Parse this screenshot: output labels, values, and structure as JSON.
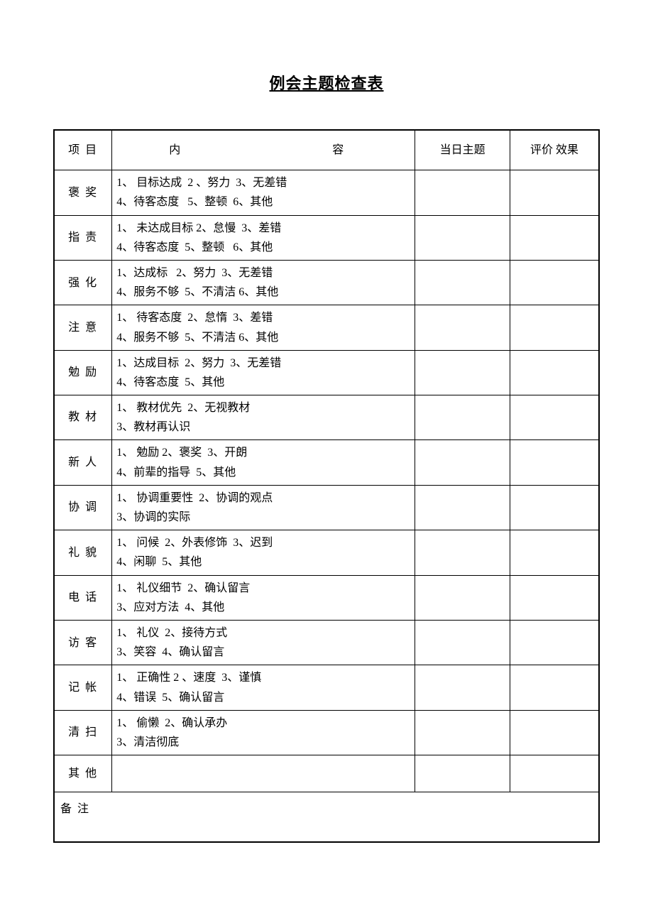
{
  "document": {
    "title": "例会主题检查表",
    "background_color": "#ffffff",
    "border_color": "#000000",
    "text_color": "#000000",
    "title_fontsize": 22,
    "body_fontsize": 16
  },
  "headers": {
    "category": "项 目",
    "content_left": "内",
    "content_right": "容",
    "topic": "当日主题",
    "effect": "评价\n效果"
  },
  "rows": [
    {
      "category": "褒 奖",
      "content": "1、 目标达成  2 、努力  3、无差错\n4、待客态度   5、整顿  6、其他"
    },
    {
      "category": "指 责",
      "content": "1、 未达成目标 2、怠慢  3、差错\n4、待客态度  5、整顿   6、其他"
    },
    {
      "category": "强 化",
      "content": "1、达成标   2、努力  3、无差错\n4、服务不够  5、不清洁 6、其他"
    },
    {
      "category": "注 意",
      "content": "1、 待客态度  2、怠惰  3、差错\n4、服务不够  5、不清洁 6、其他"
    },
    {
      "category": "勉 励",
      "content": "1、达成目标  2、努力  3、无差错\n4、待客态度  5、其他"
    },
    {
      "category": "教\n材",
      "content": "1、 教材优先  2、无视教材\n3、教材再认识"
    },
    {
      "category": "新 人",
      "content": "1、 勉励 2、褒奖  3、开朗\n4、前辈的指导  5、其他"
    },
    {
      "category": "协 调",
      "content": "1、 协调重要性  2、协调的观点\n3、协调的实际"
    },
    {
      "category": "礼 貌",
      "content": "1、 问候  2、外表修饰  3、迟到\n4、闲聊  5、其他"
    },
    {
      "category": "电 话",
      "content": "1、 礼仪细节  2、确认留言\n3、应对方法  4、其他"
    },
    {
      "category": "访 客",
      "content": "1、 礼仪  2、接待方式\n3、笑容  4、确认留言"
    },
    {
      "category": "记 帐",
      "content": "1、 正确性 2 、速度  3、谨慎\n4、错误  5、确认留言"
    },
    {
      "category": "清 扫",
      "content": "1、 偷懒  2、确认承办\n3、清洁彻底"
    }
  ],
  "other_row": {
    "category": "其 他",
    "content": ""
  },
  "remarks": {
    "label": "备 注"
  }
}
